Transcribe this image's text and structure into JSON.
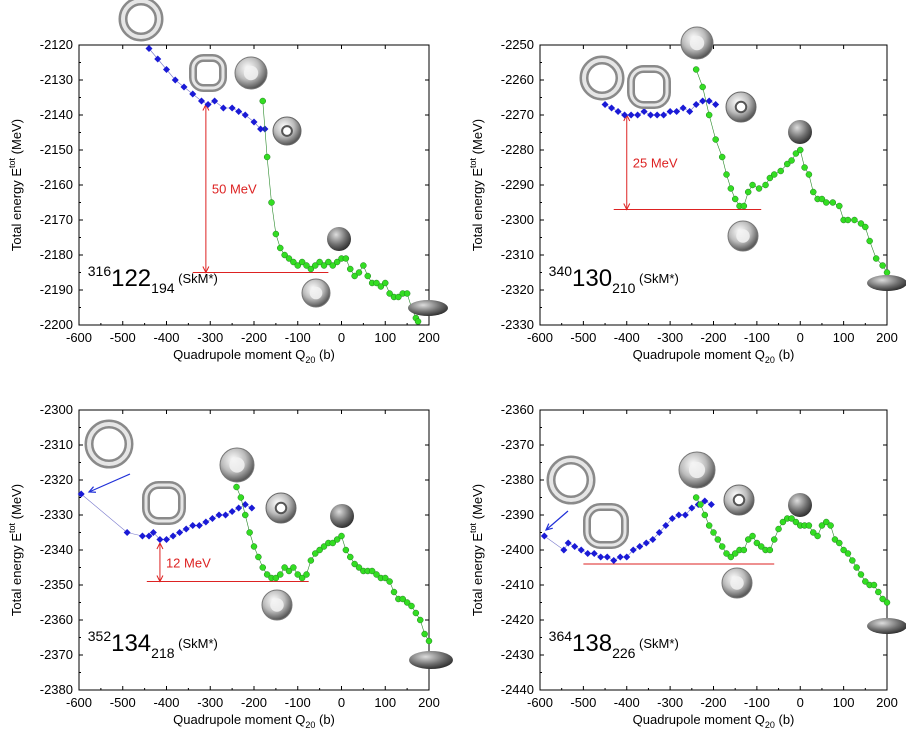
{
  "chart_data": [
    {
      "type": "scatter",
      "xlabel": "Quadrupole moment Q",
      "xlabel_sub": "20",
      "xlabel_unit": " (b)",
      "ylabel": "Total energy E",
      "ylabel_sup": "tot",
      "ylabel_unit": " (MeV)",
      "xlim": [
        -600,
        200
      ],
      "ylim": [
        -2200,
        -2120
      ],
      "xticks": [
        -600,
        -500,
        -400,
        -300,
        -200,
        -100,
        0,
        100,
        200
      ],
      "yticks": [
        -2200,
        -2190,
        -2180,
        -2170,
        -2160,
        -2150,
        -2140,
        -2130,
        -2120
      ],
      "nucleus": {
        "A": "316",
        "Z": "122",
        "N": "194",
        "model": "(SkM*)"
      },
      "series": [
        {
          "color": "#1a1ad6",
          "marker": "diamond",
          "x": [
            -440,
            -420,
            -400,
            -380,
            -360,
            -340,
            -320,
            -305,
            -290,
            -270,
            -250,
            -235,
            -220,
            -200,
            -185,
            -175
          ],
          "y": [
            -2121,
            -2124,
            -2127,
            -2130,
            -2132,
            -2134,
            -2136,
            -2137,
            -2136,
            -2138,
            -2138,
            -2139,
            -2140,
            -2142,
            -2144,
            -2144
          ]
        },
        {
          "color": "#33dd22",
          "marker": "circle",
          "x": [
            -180,
            -170,
            -160,
            -150,
            -140,
            -130,
            -120,
            -110,
            -100,
            -90,
            -80,
            -70,
            -60,
            -50,
            -40,
            -30,
            -20,
            -10,
            0,
            10,
            20,
            30,
            40,
            50,
            60,
            70,
            80,
            90,
            100,
            110,
            120,
            130,
            140,
            150,
            160,
            170,
            175
          ],
          "y": [
            -2136,
            -2152,
            -2165,
            -2174,
            -2178,
            -2180,
            -2181,
            -2182,
            -2183,
            -2182,
            -2183,
            -2184,
            -2183,
            -2182,
            -2183,
            -2182,
            -2183,
            -2182,
            -2181,
            -2181,
            -2184,
            -2186,
            -2185,
            -2183,
            -2186,
            -2188,
            -2188,
            -2189,
            -2188,
            -2191,
            -2192,
            -2192,
            -2191,
            -2191,
            -2195,
            -2198,
            -2199
          ]
        }
      ],
      "annotations": [
        {
          "text": "50 MeV",
          "x": -310,
          "y1": -2137,
          "y2": -2185,
          "line_x2": -30,
          "color": "#dd2222"
        }
      ]
    },
    {
      "type": "scatter",
      "xlabel": "Quadrupole moment Q",
      "xlabel_sub": "20",
      "xlabel_unit": " (b)",
      "ylabel": "Total energy E",
      "ylabel_sup": "tot",
      "ylabel_unit": " (MeV)",
      "xlim": [
        -600,
        200
      ],
      "ylim": [
        -2330,
        -2250
      ],
      "xticks": [
        -600,
        -500,
        -400,
        -300,
        -200,
        -100,
        0,
        100,
        200
      ],
      "yticks": [
        -2330,
        -2320,
        -2310,
        -2300,
        -2290,
        -2280,
        -2270,
        -2260,
        -2250
      ],
      "nucleus": {
        "A": "340",
        "Z": "130",
        "N": "210",
        "model": "(SkM*)"
      },
      "series": [
        {
          "color": "#1a1ad6",
          "marker": "diamond",
          "x": [
            -450,
            -435,
            -420,
            -405,
            -390,
            -375,
            -360,
            -345,
            -330,
            -315,
            -300,
            -285,
            -270,
            -255,
            -240,
            -225,
            -210,
            -195
          ],
          "y": [
            -2267,
            -2268,
            -2269,
            -2270,
            -2270,
            -2270,
            -2269,
            -2270,
            -2270,
            -2270,
            -2269,
            -2269,
            -2268,
            -2269,
            -2267,
            -2266,
            -2266,
            -2267
          ]
        },
        {
          "color": "#33dd22",
          "marker": "circle",
          "x": [
            -240,
            -225,
            -210,
            -195,
            -180,
            -170,
            -160,
            -150,
            -140,
            -130,
            -120,
            -110,
            -95,
            -80,
            -70,
            -60,
            -45,
            -30,
            -20,
            -10,
            0,
            10,
            20,
            30,
            40,
            50,
            60,
            75,
            90,
            100,
            110,
            125,
            140,
            150,
            160,
            175,
            190,
            200
          ],
          "y": [
            -2257,
            -2262,
            -2270,
            -2277,
            -2282,
            -2287,
            -2291,
            -2294,
            -2296,
            -2296,
            -2292,
            -2290,
            -2291,
            -2290,
            -2288,
            -2287,
            -2286,
            -2284,
            -2283,
            -2281,
            -2280,
            -2285,
            -2287,
            -2292,
            -2294,
            -2294,
            -2295,
            -2295,
            -2296,
            -2300,
            -2300,
            -2300,
            -2301,
            -2302,
            -2306,
            -2311,
            -2313,
            -2315
          ]
        }
      ],
      "annotations": [
        {
          "text": "25 MeV",
          "x": -400,
          "y1": -2270,
          "y2": -2297,
          "line_x2": -90,
          "color": "#dd2222"
        }
      ]
    },
    {
      "type": "scatter",
      "xlabel": "Quadrupole moment Q",
      "xlabel_sub": "20",
      "xlabel_unit": " (b)",
      "ylabel": "Total energy E",
      "ylabel_sup": "tot",
      "ylabel_unit": " (MeV)",
      "xlim": [
        -600,
        200
      ],
      "ylim": [
        -2380,
        -2300
      ],
      "xticks": [
        -600,
        -500,
        -400,
        -300,
        -200,
        -100,
        0,
        100,
        200
      ],
      "yticks": [
        -2380,
        -2370,
        -2360,
        -2350,
        -2340,
        -2330,
        -2320,
        -2310,
        -2300
      ],
      "nucleus": {
        "A": "352",
        "Z": "134",
        "N": "218",
        "model": "(SkM*)"
      },
      "series": [
        {
          "color": "#1a1ad6",
          "marker": "diamond",
          "x": [
            -595,
            -490,
            -455,
            -440,
            -430,
            -415,
            -400,
            -385,
            -370,
            -355,
            -340,
            -325,
            -310,
            -295,
            -280,
            -265,
            -250,
            -235,
            -220,
            -205
          ],
          "y": [
            -2324,
            -2335,
            -2336,
            -2336,
            -2335,
            -2337,
            -2337,
            -2336,
            -2335,
            -2334,
            -2333,
            -2333,
            -2332,
            -2331,
            -2330,
            -2330,
            -2329,
            -2328,
            -2327,
            -2328
          ]
        },
        {
          "color": "#33dd22",
          "marker": "circle",
          "x": [
            -240,
            -230,
            -220,
            -210,
            -200,
            -190,
            -180,
            -170,
            -160,
            -150,
            -140,
            -130,
            -120,
            -110,
            -100,
            -90,
            -80,
            -70,
            -60,
            -50,
            -40,
            -30,
            -20,
            -10,
            0,
            10,
            20,
            30,
            40,
            50,
            60,
            70,
            80,
            90,
            100,
            110,
            120,
            130,
            140,
            150,
            160,
            170,
            180,
            190,
            200
          ],
          "y": [
            -2322,
            -2325,
            -2330,
            -2335,
            -2339,
            -2342,
            -2345,
            -2347,
            -2348,
            -2348,
            -2347,
            -2345,
            -2346,
            -2345,
            -2347,
            -2348,
            -2347,
            -2343,
            -2341,
            -2340,
            -2339,
            -2338,
            -2338,
            -2337,
            -2336,
            -2340,
            -2342,
            -2344,
            -2345,
            -2346,
            -2346,
            -2346,
            -2347,
            -2348,
            -2348,
            -2349,
            -2352,
            -2354,
            -2354,
            -2355,
            -2356,
            -2358,
            -2360,
            -2364,
            -2366
          ]
        }
      ],
      "annotations": [
        {
          "text": "12 MeV",
          "x": -415,
          "y1": -2338,
          "y2": -2349,
          "line_x2": -75,
          "color": "#dd2222"
        }
      ]
    },
    {
      "type": "scatter",
      "xlabel": "Quadrupole moment Q",
      "xlabel_sub": "20",
      "xlabel_unit": " (b)",
      "ylabel": "Total energy E",
      "ylabel_sup": "tot",
      "ylabel_unit": " (MeV)",
      "xlim": [
        -600,
        200
      ],
      "ylim": [
        -2440,
        -2360
      ],
      "xticks": [
        -600,
        -500,
        -400,
        -300,
        -200,
        -100,
        0,
        100,
        200
      ],
      "yticks": [
        -2440,
        -2430,
        -2420,
        -2410,
        -2400,
        -2390,
        -2380,
        -2370,
        -2360
      ],
      "nucleus": {
        "A": "364",
        "Z": "138",
        "N": "226",
        "model": "(SkM*)"
      },
      "series": [
        {
          "color": "#1a1ad6",
          "marker": "diamond",
          "x": [
            -590,
            -545,
            -535,
            -520,
            -505,
            -490,
            -475,
            -460,
            -445,
            -430,
            -415,
            -400,
            -385,
            -370,
            -355,
            -340,
            -325,
            -310,
            -295,
            -280,
            -265,
            -250,
            -235,
            -220,
            -205
          ],
          "y": [
            -2396,
            -2400,
            -2398,
            -2399,
            -2400,
            -2401,
            -2401,
            -2402,
            -2402,
            -2403,
            -2402,
            -2402,
            -2400,
            -2399,
            -2398,
            -2397,
            -2395,
            -2393,
            -2391,
            -2390,
            -2390,
            -2388,
            -2387,
            -2386,
            -2387
          ]
        },
        {
          "color": "#33dd22",
          "marker": "circle",
          "x": [
            -240,
            -230,
            -220,
            -210,
            -200,
            -190,
            -180,
            -170,
            -160,
            -150,
            -140,
            -130,
            -120,
            -110,
            -100,
            -90,
            -80,
            -70,
            -60,
            -50,
            -40,
            -30,
            -20,
            -10,
            0,
            10,
            20,
            30,
            40,
            50,
            60,
            70,
            80,
            90,
            100,
            110,
            120,
            130,
            140,
            150,
            160,
            170,
            180,
            190,
            200
          ],
          "y": [
            -2385,
            -2387,
            -2390,
            -2393,
            -2395,
            -2397,
            -2399,
            -2401,
            -2402,
            -2401,
            -2400,
            -2400,
            -2397,
            -2396,
            -2398,
            -2399,
            -2400,
            -2400,
            -2397,
            -2394,
            -2392,
            -2391,
            -2391,
            -2392,
            -2393,
            -2393,
            -2393,
            -2395,
            -2396,
            -2393,
            -2392,
            -2393,
            -2397,
            -2398,
            -2400,
            -2401,
            -2403,
            -2405,
            -2407,
            -2409,
            -2410,
            -2410,
            -2412,
            -2414,
            -2415
          ]
        }
      ],
      "annotations": [
        {
          "text": "",
          "x": -470,
          "y1": -2404,
          "y2": -2404,
          "line_x2": -60,
          "color": "#dd2222"
        }
      ]
    }
  ]
}
